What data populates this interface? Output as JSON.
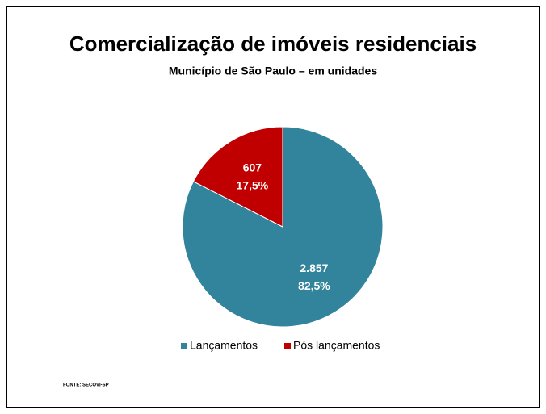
{
  "chart_data": {
    "type": "pie",
    "title": "Comercialização de imóveis residenciais",
    "subtitle": "Município de São Paulo – em unidades",
    "categories": [
      "Lançamentos",
      "Pós lançamentos"
    ],
    "values": [
      2857,
      607
    ],
    "value_labels": [
      "2.857",
      "607"
    ],
    "percents": [
      82.5,
      17.5
    ],
    "percent_labels": [
      "82,5%",
      "17,5%"
    ],
    "colors": [
      "#31849b",
      "#c00000"
    ],
    "legend": "bottom",
    "source": "FONTE: SECOVI-SP"
  }
}
